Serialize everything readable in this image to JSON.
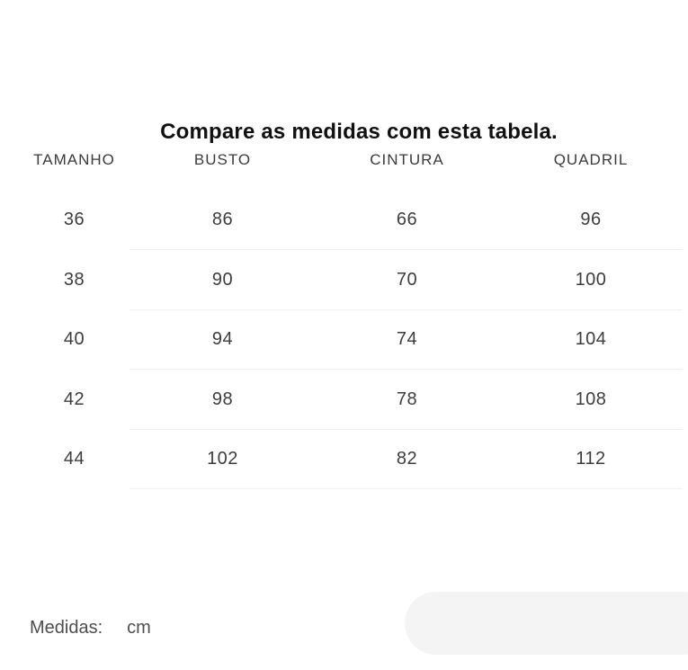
{
  "title": "Compare as medidas com esta tabela.",
  "table": {
    "headers": [
      "TAMANHO",
      "BUSTO",
      "CINTURA",
      "QUADRIL"
    ],
    "rows": [
      [
        "36",
        "86",
        "66",
        "96"
      ],
      [
        "38",
        "90",
        "70",
        "100"
      ],
      [
        "40",
        "94",
        "74",
        "104"
      ],
      [
        "42",
        "98",
        "78",
        "108"
      ],
      [
        "44",
        "102",
        "82",
        "112"
      ]
    ]
  },
  "footer": {
    "label": "Medidas:",
    "unit": "cm"
  },
  "colors": {
    "background": "#ffffff",
    "title_text": "#111111",
    "table_text": "#3d3d3d",
    "divider": "#f0f0f0",
    "footer_text": "#4d4d4d",
    "pill_background": "#f4f4f4"
  }
}
